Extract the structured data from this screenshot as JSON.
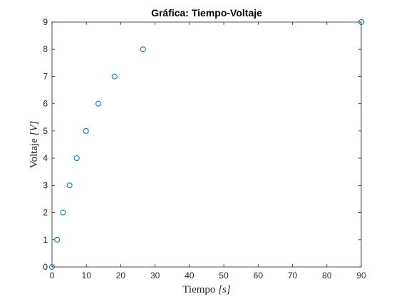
{
  "chart_data": {
    "type": "scatter",
    "title": "Gráfica: Tiempo-Voltaje",
    "xlabel_text": "Tiempo ",
    "xlabel_unit": "[s]",
    "ylabel_text": "Voltaje ",
    "ylabel_unit": "[V]",
    "xlim": [
      0,
      90
    ],
    "ylim": [
      0,
      9
    ],
    "xticks": [
      "0",
      "10",
      "20",
      "30",
      "40",
      "50",
      "60",
      "70",
      "80",
      "90"
    ],
    "yticks": [
      "0",
      "1",
      "2",
      "3",
      "4",
      "5",
      "6",
      "7",
      "8",
      "9"
    ],
    "grid": false,
    "box": true,
    "marker": "circle",
    "marker_color": "#0072BD",
    "axis_color": "#262626",
    "points": [
      {
        "x": 0,
        "y": 0
      },
      {
        "x": 1.5,
        "y": 1
      },
      {
        "x": 3.2,
        "y": 2
      },
      {
        "x": 5.1,
        "y": 3
      },
      {
        "x": 7.2,
        "y": 4
      },
      {
        "x": 9.9,
        "y": 5
      },
      {
        "x": 13.5,
        "y": 6
      },
      {
        "x": 18.2,
        "y": 7
      },
      {
        "x": 26.5,
        "y": 8
      },
      {
        "x": 90,
        "y": 9
      }
    ]
  }
}
